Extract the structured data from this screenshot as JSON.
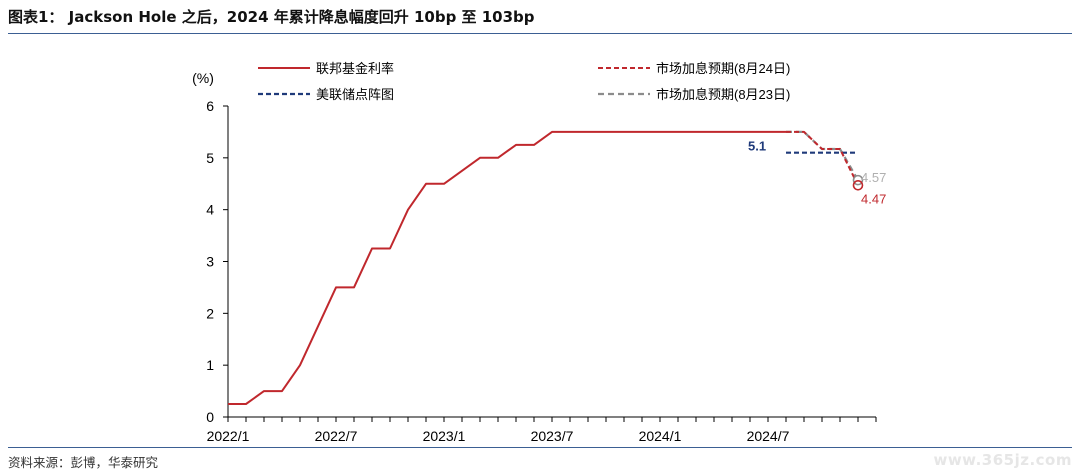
{
  "page": {
    "title": "图表1： Jackson Hole 之后，2024 年累计降息幅度回升 10bp 至 103bp",
    "source": "资料来源：彭博，华泰研究",
    "watermark": "www.365jz.com"
  },
  "colors": {
    "fed_funds": "#c0282d",
    "market_aug24": "#c0282d",
    "dot_plot": "#1f3a7a",
    "market_aug23": "#8c8c8c",
    "axis": "#000000",
    "rule": "#3b5f93"
  },
  "chart_data": {
    "type": "line",
    "title": "",
    "ylabel": "(%)",
    "xlabel": "",
    "ylim": [
      0,
      6
    ],
    "yticks": [
      "0",
      "1",
      "2",
      "3",
      "4",
      "5",
      "6"
    ],
    "xlim": [
      "2022-01",
      "2025-01"
    ],
    "xticks": [
      "2022/1",
      "2022/7",
      "2023/1",
      "2023/7",
      "2024/1",
      "2024/7"
    ],
    "grid": false,
    "legend_position": "top",
    "series": [
      {
        "name": "联邦基金利率",
        "style": "solid",
        "points": [
          [
            "2022-01",
            0.25
          ],
          [
            "2022-02",
            0.25
          ],
          [
            "2022-03",
            0.5
          ],
          [
            "2022-04",
            0.5
          ],
          [
            "2022-05",
            1.0
          ],
          [
            "2022-06",
            1.75
          ],
          [
            "2022-07",
            2.5
          ],
          [
            "2022-08",
            2.5
          ],
          [
            "2022-09",
            3.25
          ],
          [
            "2022-10",
            3.25
          ],
          [
            "2022-11",
            4.0
          ],
          [
            "2022-12",
            4.5
          ],
          [
            "2023-01",
            4.5
          ],
          [
            "2023-02",
            4.75
          ],
          [
            "2023-03",
            5.0
          ],
          [
            "2023-04",
            5.0
          ],
          [
            "2023-05",
            5.25
          ],
          [
            "2023-06",
            5.25
          ],
          [
            "2023-07",
            5.5
          ],
          [
            "2023-08",
            5.5
          ],
          [
            "2023-09",
            5.5
          ],
          [
            "2023-10",
            5.5
          ],
          [
            "2023-11",
            5.5
          ],
          [
            "2023-12",
            5.5
          ],
          [
            "2024-01",
            5.5
          ],
          [
            "2024-02",
            5.5
          ],
          [
            "2024-03",
            5.5
          ],
          [
            "2024-04",
            5.5
          ],
          [
            "2024-05",
            5.5
          ],
          [
            "2024-06",
            5.5
          ],
          [
            "2024-07",
            5.5
          ],
          [
            "2024-08",
            5.5
          ]
        ]
      },
      {
        "name": "市场加息预期(8月24日)",
        "style": "dashed",
        "points": [
          [
            "2024-08",
            5.5
          ],
          [
            "2024-09",
            5.5
          ],
          [
            "2024-10",
            5.17
          ],
          [
            "2024-11",
            5.17
          ],
          [
            "2024-12",
            4.47
          ]
        ]
      },
      {
        "name": "美联储点阵图",
        "style": "dashed",
        "points": [
          [
            "2024-08",
            5.1
          ],
          [
            "2024-12",
            5.1
          ]
        ]
      },
      {
        "name": "市场加息预期(8月23日)",
        "style": "dashed",
        "points": [
          [
            "2024-08",
            5.5
          ],
          [
            "2024-09",
            5.5
          ],
          [
            "2024-10",
            5.17
          ],
          [
            "2024-11",
            5.17
          ],
          [
            "2024-12",
            4.57
          ]
        ]
      }
    ],
    "annotations": [
      {
        "text": "5.1",
        "series": "美联储点阵图"
      },
      {
        "text": "4.57",
        "series": "市场加息预期(8月23日)"
      },
      {
        "text": "4.47",
        "series": "市场加息预期(8月24日)"
      }
    ]
  }
}
